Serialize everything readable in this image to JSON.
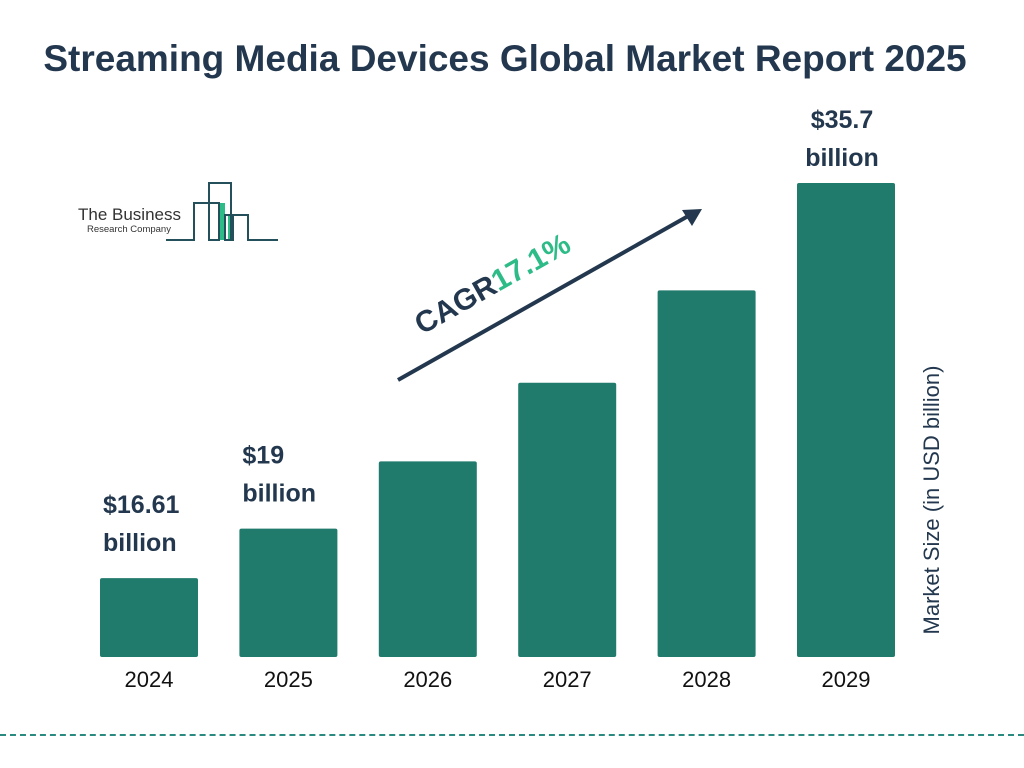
{
  "title": "Streaming Media Devices Global Market Report 2025",
  "logo": {
    "line1": "The Business",
    "line2": "Research Company"
  },
  "colors": {
    "bar": "#217b6c",
    "title": "#23384e",
    "cagr_value": "#2dbb87",
    "divider": "#2a8a80"
  },
  "chart_data": {
    "type": "bar",
    "title": "Streaming Media Devices Global Market Report 2025",
    "categories": [
      "2024",
      "2025",
      "2026",
      "2027",
      "2028",
      "2029"
    ],
    "values": [
      16.61,
      19,
      22.25,
      26.05,
      30.51,
      35.7
    ],
    "data_labels": [
      [
        "$16.61",
        "billion"
      ],
      [
        "$19",
        "billion"
      ],
      null,
      null,
      null,
      [
        "$35.7",
        "billion"
      ]
    ],
    "xlabel": "",
    "ylabel": "Market Size (in USD billion)",
    "ylim": [
      12.8,
      35.7
    ],
    "grid": false,
    "annotation": {
      "label": "CAGR",
      "value": "17.1%"
    }
  }
}
